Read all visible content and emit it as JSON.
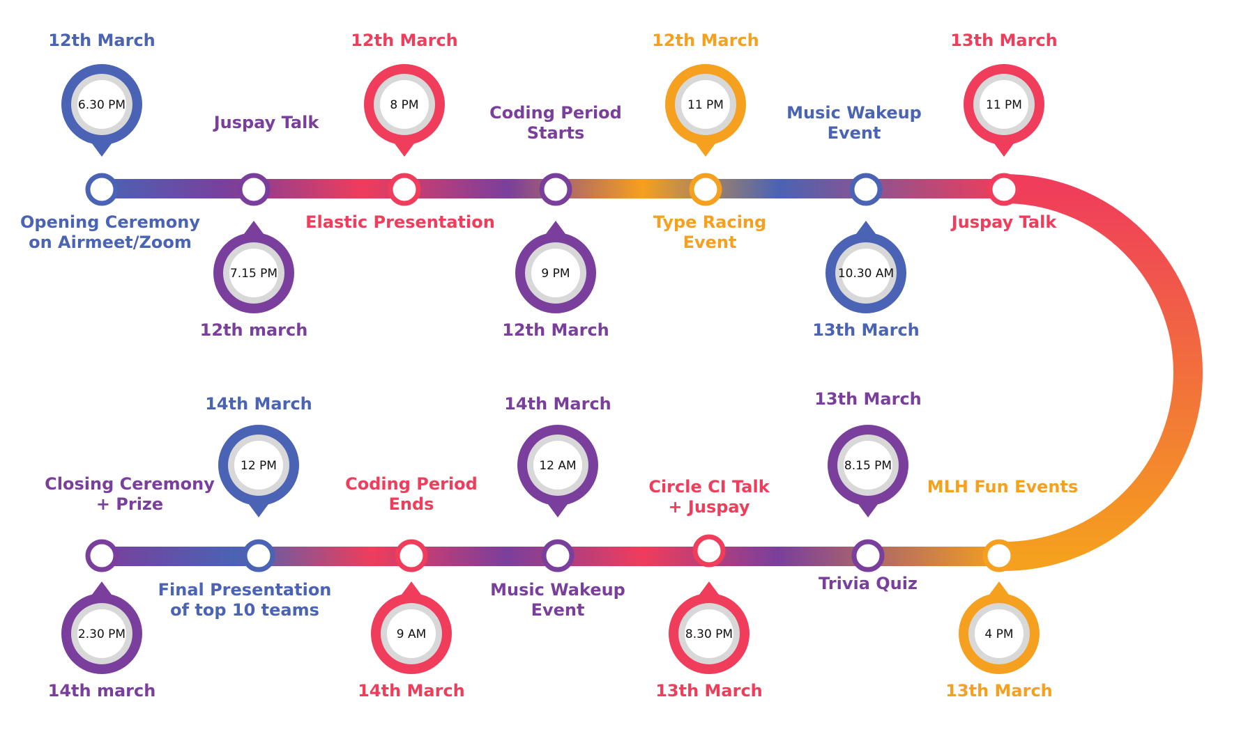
{
  "colors": {
    "blue": "#4a63b4",
    "purple": "#7a3f9c",
    "red": "#ef3d5b",
    "orange": "#f5a01e",
    "inner_ring": "#d8d8d8"
  },
  "events": [
    {
      "date": "12th March",
      "time": "6.30 PM",
      "title_lines": [
        "Opening Ceremony",
        "on Airmeet/Zoom"
      ],
      "color": "blue"
    },
    {
      "date": "12th march",
      "time": "7.15 PM",
      "title_lines": [
        "Juspay Talk"
      ],
      "color": "purple"
    },
    {
      "date": "12th March",
      "time": "8 PM",
      "title_lines": [
        "Elastic Presentation"
      ],
      "color": "red"
    },
    {
      "date": "12th March",
      "time": "9 PM",
      "title_lines": [
        "Coding Period",
        "Starts"
      ],
      "color": "purple"
    },
    {
      "date": "12th March",
      "time": "11 PM",
      "title_lines": [
        "Type Racing",
        "Event"
      ],
      "color": "orange"
    },
    {
      "date": "13th March",
      "time": "10.30 AM",
      "title_lines": [
        "Music Wakeup",
        "Event"
      ],
      "color": "blue"
    },
    {
      "date": "13th March",
      "time": "11 PM",
      "title_lines": [
        "Juspay Talk"
      ],
      "color": "red"
    },
    {
      "date": "13th March",
      "time": "4 PM",
      "title_lines": [
        "MLH Fun Events"
      ],
      "color": "orange"
    },
    {
      "date": "13th March",
      "time": "8.15 PM",
      "title_lines": [
        "Trivia Quiz"
      ],
      "color": "purple"
    },
    {
      "date": "13th March",
      "time": "8.30 PM",
      "title_lines": [
        "Circle CI Talk",
        "+ Juspay"
      ],
      "color": "red"
    },
    {
      "date": "14th March",
      "time": "12 AM",
      "title_lines": [
        "Music Wakeup",
        "Event"
      ],
      "color": "purple"
    },
    {
      "date": "14th March",
      "time": "9 AM",
      "title_lines": [
        "Coding Period",
        "Ends"
      ],
      "color": "red"
    },
    {
      "date": "14th March",
      "time": "12 PM",
      "title_lines": [
        "Final Presentation",
        "of top 10 teams"
      ],
      "color": "blue"
    },
    {
      "date": "14th march",
      "time": "2.30 PM",
      "title_lines": [
        "Closing Ceremony",
        "+ Prize"
      ],
      "color": "purple"
    }
  ]
}
